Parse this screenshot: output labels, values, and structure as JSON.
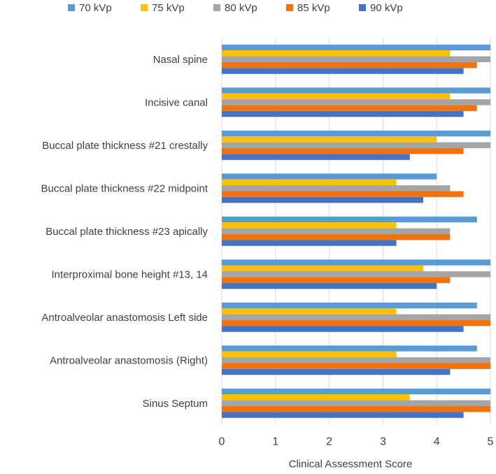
{
  "chart_data": {
    "type": "bar",
    "orientation": "horizontal",
    "title": "",
    "xlabel": "Clinical Assessment Score",
    "ylabel": "",
    "xlim": [
      0,
      5
    ],
    "xticks": [
      0,
      1,
      2,
      3,
      4,
      5
    ],
    "grid": "vertical",
    "legend_position": "top",
    "categories": [
      "Nasal spine",
      "Incisive canal",
      "Buccal plate thickness #21 crestally",
      "Buccal plate thickness #22 midpoint",
      "Buccal plate thickness #23 apically",
      "Interproximal bone height #13, 14",
      "Antroalveolar anastomosis Left side",
      "Antroalveolar anastomosis (Right)",
      "Sinus Septum"
    ],
    "series": [
      {
        "name": "70 kVp",
        "color": "#5b9bd5",
        "values": [
          5.0,
          5.0,
          5.0,
          4.0,
          4.75,
          5.0,
          4.75,
          4.75,
          5.0
        ]
      },
      {
        "name": "75 kVp",
        "color": "#ffc000",
        "values": [
          4.25,
          4.25,
          4.0,
          3.25,
          3.25,
          3.75,
          3.25,
          3.25,
          3.5
        ]
      },
      {
        "name": "80 kVp",
        "color": "#a5a5a5",
        "values": [
          5.0,
          5.0,
          5.0,
          4.25,
          4.25,
          5.0,
          5.0,
          5.0,
          5.0
        ]
      },
      {
        "name": "85 kVp",
        "color": "#f4720b",
        "values": [
          4.75,
          4.75,
          4.5,
          4.5,
          4.25,
          4.25,
          5.0,
          5.0,
          5.0
        ]
      },
      {
        "name": "90 kVp",
        "color": "#4472c4",
        "values": [
          4.5,
          4.5,
          3.5,
          3.75,
          3.25,
          4.0,
          4.5,
          4.25,
          4.5
        ]
      }
    ]
  }
}
